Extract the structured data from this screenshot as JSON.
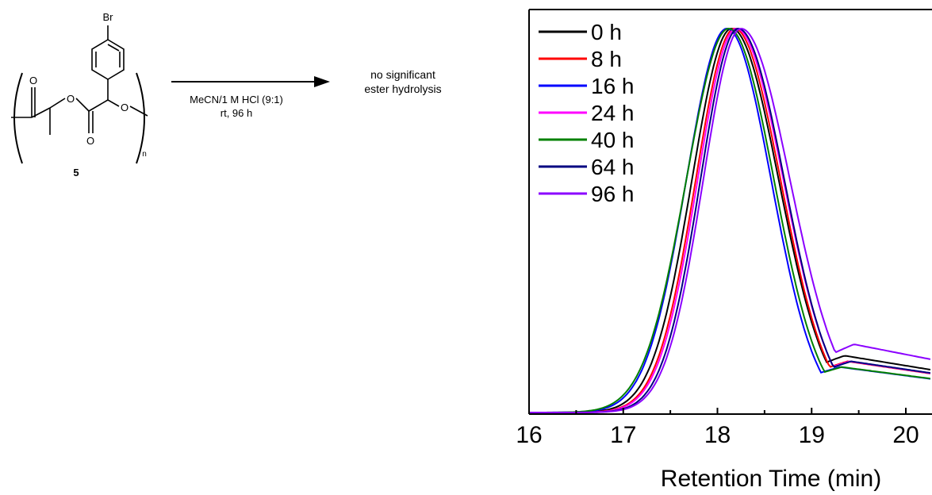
{
  "scheme": {
    "substituent": "Br",
    "carbonyl_oxygen": "O",
    "ester_oxygen": "O",
    "ether_oxygen": "O",
    "subscript": "n",
    "compound_number": "5",
    "conditions_line1": "MeCN/1 M HCl (9:1)",
    "conditions_line2": "rt, 96 h",
    "result_line1": "no significant",
    "result_line2": "ester hydrolysis"
  },
  "chart_data": {
    "type": "line",
    "title": "",
    "xlabel": "Retention Time (min)",
    "ylabel": "",
    "xlim": [
      16,
      20.6
    ],
    "ylim": [
      0,
      1.0
    ],
    "x_ticks": [
      16,
      17,
      18,
      19,
      20
    ],
    "grid": false,
    "legend_position": "top-left",
    "series": [
      {
        "name": "0 h",
        "color": "#000000",
        "peak": 18.15,
        "sigma_left": 0.42,
        "sigma_right": 0.5,
        "tail_end": 0.1
      },
      {
        "name": "8 h",
        "color": "#ff0000",
        "peak": 18.18,
        "sigma_left": 0.41,
        "sigma_right": 0.49,
        "tail_end": 0.09
      },
      {
        "name": "16 h",
        "color": "#0000ff",
        "peak": 18.1,
        "sigma_left": 0.43,
        "sigma_right": 0.47,
        "tail_end": 0.08
      },
      {
        "name": "24 h",
        "color": "#ff00ff",
        "peak": 18.2,
        "sigma_left": 0.41,
        "sigma_right": 0.5,
        "tail_end": 0.09
      },
      {
        "name": "40 h",
        "color": "#008000",
        "peak": 18.12,
        "sigma_left": 0.45,
        "sigma_right": 0.48,
        "tail_end": 0.08
      },
      {
        "name": "64 h",
        "color": "#000080",
        "peak": 18.22,
        "sigma_left": 0.4,
        "sigma_right": 0.49,
        "tail_end": 0.09
      },
      {
        "name": "96 h",
        "color": "#8b00ff",
        "peak": 18.25,
        "sigma_left": 0.4,
        "sigma_right": 0.52,
        "tail_end": 0.12
      }
    ]
  }
}
